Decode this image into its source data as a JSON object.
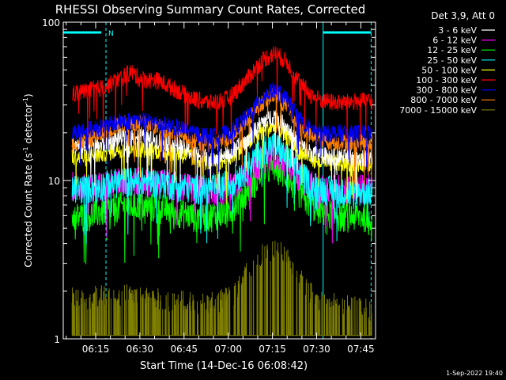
{
  "chart_data": {
    "type": "line",
    "title": "RHESSI Observing Summary Count Rates, Corrected",
    "xlabel": "Start Time (14-Dec-16 06:08:42)",
    "ylabel_main": "Corrected Count Rate (s",
    "ylabel_sup1": "-1",
    "ylabel_mid": " detector",
    "ylabel_sup2": "-1",
    "ylabel_end": ")",
    "y_scale": "log",
    "ylim": [
      1,
      100
    ],
    "y_ticks": [
      {
        "value": 1,
        "label": "1"
      },
      {
        "value": 10,
        "label": "10"
      },
      {
        "value": 100,
        "label": "100"
      }
    ],
    "x_range_min": [
      4,
      110
    ],
    "x_ticks": [
      {
        "min": 15,
        "label": "06:15"
      },
      {
        "min": 30,
        "label": "06:30"
      },
      {
        "min": 45,
        "label": "06:45"
      },
      {
        "min": 60,
        "label": "07:00"
      },
      {
        "min": 75,
        "label": "07:15"
      },
      {
        "min": 90,
        "label": "07:30"
      },
      {
        "min": 105,
        "label": "07:45"
      }
    ],
    "legend_header": "Det 3,9, Att 0",
    "legend_placement": "right",
    "series": [
      {
        "name": "3 - 6 keV",
        "color": "#ffffff",
        "values": [
          [
            6,
            17
          ],
          [
            12,
            16
          ],
          [
            18,
            17
          ],
          [
            24,
            19
          ],
          [
            30,
            19
          ],
          [
            36,
            18
          ],
          [
            42,
            17
          ],
          [
            48,
            15
          ],
          [
            54,
            14
          ],
          [
            60,
            14.5
          ],
          [
            66,
            18
          ],
          [
            72,
            24
          ],
          [
            76,
            26
          ],
          [
            80,
            22
          ],
          [
            84,
            17
          ],
          [
            88,
            15
          ],
          [
            92,
            14.5
          ],
          [
            98,
            14
          ],
          [
            106,
            14
          ]
        ]
      },
      {
        "name": "6 - 12 keV",
        "color": "#ff00ff",
        "values": [
          [
            6,
            9.5
          ],
          [
            12,
            9
          ],
          [
            18,
            9.5
          ],
          [
            24,
            10
          ],
          [
            30,
            10
          ],
          [
            36,
            9.8
          ],
          [
            42,
            9.5
          ],
          [
            48,
            9
          ],
          [
            54,
            8.5
          ],
          [
            60,
            9
          ],
          [
            66,
            11
          ],
          [
            72,
            14
          ],
          [
            76,
            15
          ],
          [
            80,
            13
          ],
          [
            84,
            11
          ],
          [
            88,
            9.5
          ],
          [
            92,
            9
          ],
          [
            98,
            9
          ],
          [
            106,
            9
          ]
        ]
      },
      {
        "name": "12 - 25 keV",
        "color": "#00ff00",
        "values": [
          [
            6,
            6
          ],
          [
            12,
            6
          ],
          [
            18,
            6.5
          ],
          [
            24,
            7
          ],
          [
            30,
            7
          ],
          [
            36,
            6.8
          ],
          [
            42,
            6.5
          ],
          [
            48,
            6
          ],
          [
            54,
            6
          ],
          [
            60,
            6.5
          ],
          [
            66,
            8.5
          ],
          [
            72,
            11.5
          ],
          [
            76,
            12.5
          ],
          [
            80,
            10.5
          ],
          [
            84,
            8.5
          ],
          [
            88,
            7
          ],
          [
            92,
            6.5
          ],
          [
            98,
            6
          ],
          [
            106,
            6
          ]
        ]
      },
      {
        "name": "25 - 50 keV",
        "color": "#00ffff",
        "values": [
          [
            6,
            9
          ],
          [
            12,
            9
          ],
          [
            18,
            9.5
          ],
          [
            24,
            10
          ],
          [
            30,
            10
          ],
          [
            36,
            9.8
          ],
          [
            42,
            9.5
          ],
          [
            48,
            9
          ],
          [
            54,
            9
          ],
          [
            60,
            9.5
          ],
          [
            66,
            12
          ],
          [
            72,
            16
          ],
          [
            76,
            17
          ],
          [
            80,
            14
          ],
          [
            84,
            11.5
          ],
          [
            88,
            9.5
          ],
          [
            92,
            9
          ],
          [
            98,
            8.5
          ],
          [
            106,
            8.5
          ]
        ]
      },
      {
        "name": "50 - 100 keV",
        "color": "#ffff00",
        "values": [
          [
            6,
            14
          ],
          [
            12,
            14
          ],
          [
            18,
            15
          ],
          [
            24,
            16
          ],
          [
            30,
            16
          ],
          [
            36,
            15.5
          ],
          [
            42,
            15
          ],
          [
            48,
            14
          ],
          [
            54,
            13
          ],
          [
            60,
            13.5
          ],
          [
            66,
            17
          ],
          [
            72,
            21
          ],
          [
            76,
            22
          ],
          [
            80,
            19
          ],
          [
            84,
            15.5
          ],
          [
            88,
            14
          ],
          [
            92,
            13
          ],
          [
            98,
            13
          ],
          [
            106,
            13
          ]
        ]
      },
      {
        "name": "100 - 300 keV",
        "color": "#ff0000",
        "values": [
          [
            6,
            35
          ],
          [
            12,
            37
          ],
          [
            18,
            39
          ],
          [
            24,
            45
          ],
          [
            27,
            49
          ],
          [
            30,
            44
          ],
          [
            36,
            43
          ],
          [
            42,
            38
          ],
          [
            48,
            33
          ],
          [
            54,
            31
          ],
          [
            60,
            33
          ],
          [
            66,
            43
          ],
          [
            72,
            59
          ],
          [
            76,
            64
          ],
          [
            80,
            56
          ],
          [
            84,
            42
          ],
          [
            88,
            35
          ],
          [
            92,
            32
          ],
          [
            98,
            31
          ],
          [
            106,
            32
          ]
        ]
      },
      {
        "name": "300 - 800 keV",
        "color": "#0000ff",
        "values": [
          [
            6,
            20
          ],
          [
            12,
            21
          ],
          [
            18,
            22
          ],
          [
            24,
            24
          ],
          [
            30,
            24
          ],
          [
            36,
            23
          ],
          [
            42,
            22
          ],
          [
            48,
            20
          ],
          [
            54,
            19
          ],
          [
            60,
            20
          ],
          [
            66,
            25
          ],
          [
            72,
            34
          ],
          [
            76,
            38
          ],
          [
            80,
            32
          ],
          [
            84,
            25
          ],
          [
            88,
            21
          ],
          [
            92,
            20
          ],
          [
            98,
            20
          ],
          [
            106,
            20
          ]
        ]
      },
      {
        "name": "800 - 7000 keV",
        "color": "#ff8000",
        "values": [
          [
            6,
            17
          ],
          [
            12,
            18
          ],
          [
            18,
            20
          ],
          [
            24,
            23
          ],
          [
            30,
            23
          ],
          [
            36,
            22
          ],
          [
            42,
            20
          ],
          [
            48,
            18
          ],
          [
            54,
            17
          ],
          [
            60,
            18
          ],
          [
            66,
            24
          ],
          [
            72,
            32
          ],
          [
            76,
            35
          ],
          [
            80,
            29
          ],
          [
            84,
            22
          ],
          [
            88,
            19
          ],
          [
            92,
            18
          ],
          [
            98,
            17.5
          ],
          [
            106,
            17.5
          ]
        ]
      },
      {
        "name": "7000 - 15000 keV",
        "color": "#808000",
        "values": [
          [
            6,
            1.5
          ],
          [
            24,
            1.6
          ],
          [
            36,
            1.5
          ],
          [
            54,
            1.4
          ],
          [
            62,
            1.6
          ],
          [
            66,
            2.2
          ],
          [
            70,
            2.8
          ],
          [
            74,
            3.1
          ],
          [
            78,
            3.0
          ],
          [
            82,
            2.4
          ],
          [
            86,
            1.8
          ],
          [
            90,
            1.5
          ],
          [
            98,
            1.4
          ],
          [
            106,
            1.3
          ]
        ]
      }
    ],
    "interval_marks": [
      {
        "label": "N",
        "from": 4,
        "to": 18.5
      }
    ]
  },
  "footer": {
    "timestamp": "1-Sep-2022 19:40"
  }
}
